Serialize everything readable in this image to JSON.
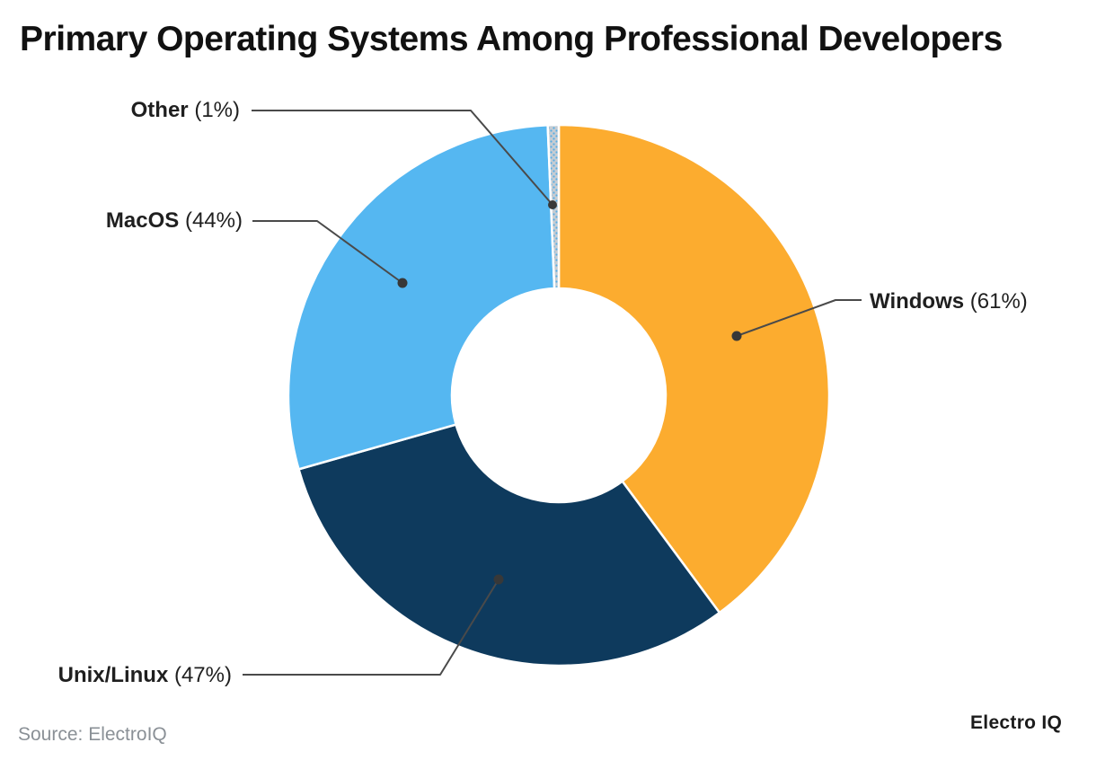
{
  "title": "Primary Operating Systems Among Professional Developers",
  "source": "Source: ElectroIQ",
  "brand": "Electro IQ",
  "colors": {
    "background": "#FFFFFF",
    "title_text": "#111111",
    "label_text": "#1F1F1F",
    "source_text": "#8A9096",
    "leader_line": "#4A4A4A",
    "leader_dot": "#383838",
    "slice_separator": "#FFFFFF"
  },
  "chart_data": {
    "type": "pie",
    "subtype": "donut",
    "title": "Primary Operating Systems Among Professional Developers",
    "unit": "%",
    "start_angle_deg": 0,
    "direction": "clockwise",
    "donut_hole_ratio": 0.4,
    "legend_position": "none",
    "label_style": "callout-lines-with-dots",
    "categories": [
      "Windows",
      "Unix/Linux",
      "MacOS",
      "Other"
    ],
    "values": [
      61,
      47,
      44,
      1
    ],
    "slices": [
      {
        "label": "Windows",
        "value": 61,
        "pct_label": "(61%)",
        "color": "#FCAC2F"
      },
      {
        "label": "Unix/Linux",
        "value": 47,
        "pct_label": "(47%)",
        "color": "#0E3A5D"
      },
      {
        "label": "MacOS",
        "value": 44,
        "pct_label": "(44%)",
        "color": "#55B7F1"
      },
      {
        "label": "Other",
        "value": 1,
        "pct_label": "(1%)",
        "color": "#C6CCD2",
        "pattern": {
          "bg": "#C6CCD2",
          "dot": "#55ADE5"
        }
      }
    ]
  }
}
